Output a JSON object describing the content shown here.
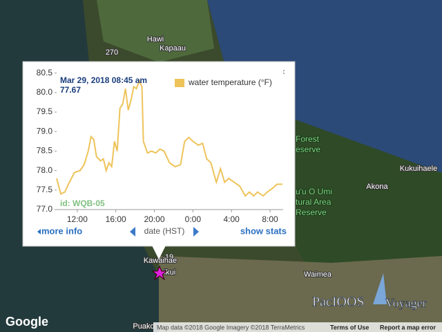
{
  "map": {
    "labels": [
      "Hawi",
      "Kapaau",
      "270",
      "Kukuihaele",
      "Akona",
      "Waimea",
      "19",
      "Kawaihae",
      "ikui",
      "Puako"
    ],
    "green_labels": [
      "Forest",
      "eserve",
      "u'u O Umi",
      "tural Area",
      "Reserve"
    ]
  },
  "footer": {
    "brand": "Google",
    "attribution": "Map data ©2018 Google Imagery ©2018 TerraMetrics",
    "terms": "Terms of Use",
    "report": "Report a map error",
    "logo": "PacIOOS",
    "logo2": "Voyager"
  },
  "popup": {
    "more_info": "more info",
    "show_stats": "show stats",
    "close": "×"
  },
  "chart_data": {
    "type": "line",
    "x_label": "date (HST)",
    "tooltip_date": "Mar 29, 2018 08:45 am",
    "tooltip_value": "77.67",
    "annotation": "id: WQB-05",
    "legend": "top-right",
    "xlim": [
      9.86,
      33.36
    ],
    "ylim": [
      77.0,
      80.6
    ],
    "xticks": [
      {
        "value": 12,
        "label": "12:00"
      },
      {
        "value": 16,
        "label": "16:00"
      },
      {
        "value": 20,
        "label": "20:00"
      },
      {
        "value": 24,
        "label": "0:00"
      },
      {
        "value": 28,
        "label": "4:00"
      },
      {
        "value": 32,
        "label": "8:00"
      }
    ],
    "yticks": [
      {
        "value": 77.0,
        "label": "77.0"
      },
      {
        "value": 77.5,
        "label": "77.5"
      },
      {
        "value": 78.0,
        "label": "78.0"
      },
      {
        "value": 78.5,
        "label": "78.5"
      },
      {
        "value": 79.0,
        "label": "79.0"
      },
      {
        "value": 79.5,
        "label": "79.5"
      },
      {
        "value": 80.0,
        "label": "80.0"
      },
      {
        "value": 80.5,
        "label": "80.5"
      }
    ],
    "x": [
      9.86,
      10.29,
      10.71,
      11.14,
      11.71,
      12.29,
      12.71,
      13.14,
      13.43,
      13.71,
      14.0,
      14.43,
      14.71,
      15.0,
      15.29,
      15.57,
      15.86,
      16.14,
      16.43,
      16.71,
      17.0,
      17.29,
      17.57,
      17.86,
      18.14,
      18.43,
      18.71,
      18.86,
      19.29,
      19.71,
      20.14,
      20.57,
      21.0,
      21.57,
      22.14,
      22.71,
      23.14,
      23.57,
      24.0,
      24.57,
      25.0,
      25.43,
      25.86,
      26.43,
      26.86,
      27.29,
      27.71,
      28.29,
      28.86,
      29.43,
      29.86,
      30.29,
      30.71,
      31.29,
      31.71,
      32.29,
      32.71,
      33.29
    ],
    "series": [
      {
        "name": "water temperature (°F)",
        "color": "#eec35a",
        "values": [
          77.8,
          77.4,
          77.45,
          77.68,
          77.95,
          78.0,
          78.15,
          78.5,
          78.87,
          78.8,
          78.35,
          78.25,
          78.3,
          78.0,
          78.2,
          78.1,
          78.75,
          78.5,
          79.6,
          79.7,
          80.1,
          79.55,
          79.8,
          80.15,
          80.1,
          80.3,
          80.15,
          78.75,
          78.45,
          78.5,
          78.45,
          78.55,
          78.5,
          78.2,
          78.1,
          78.15,
          78.75,
          78.85,
          78.75,
          78.65,
          78.7,
          78.3,
          78.2,
          77.7,
          78.05,
          77.7,
          77.8,
          77.7,
          77.6,
          77.35,
          77.45,
          77.35,
          77.45,
          77.35,
          77.45,
          77.55,
          77.65,
          77.65
        ]
      }
    ]
  }
}
